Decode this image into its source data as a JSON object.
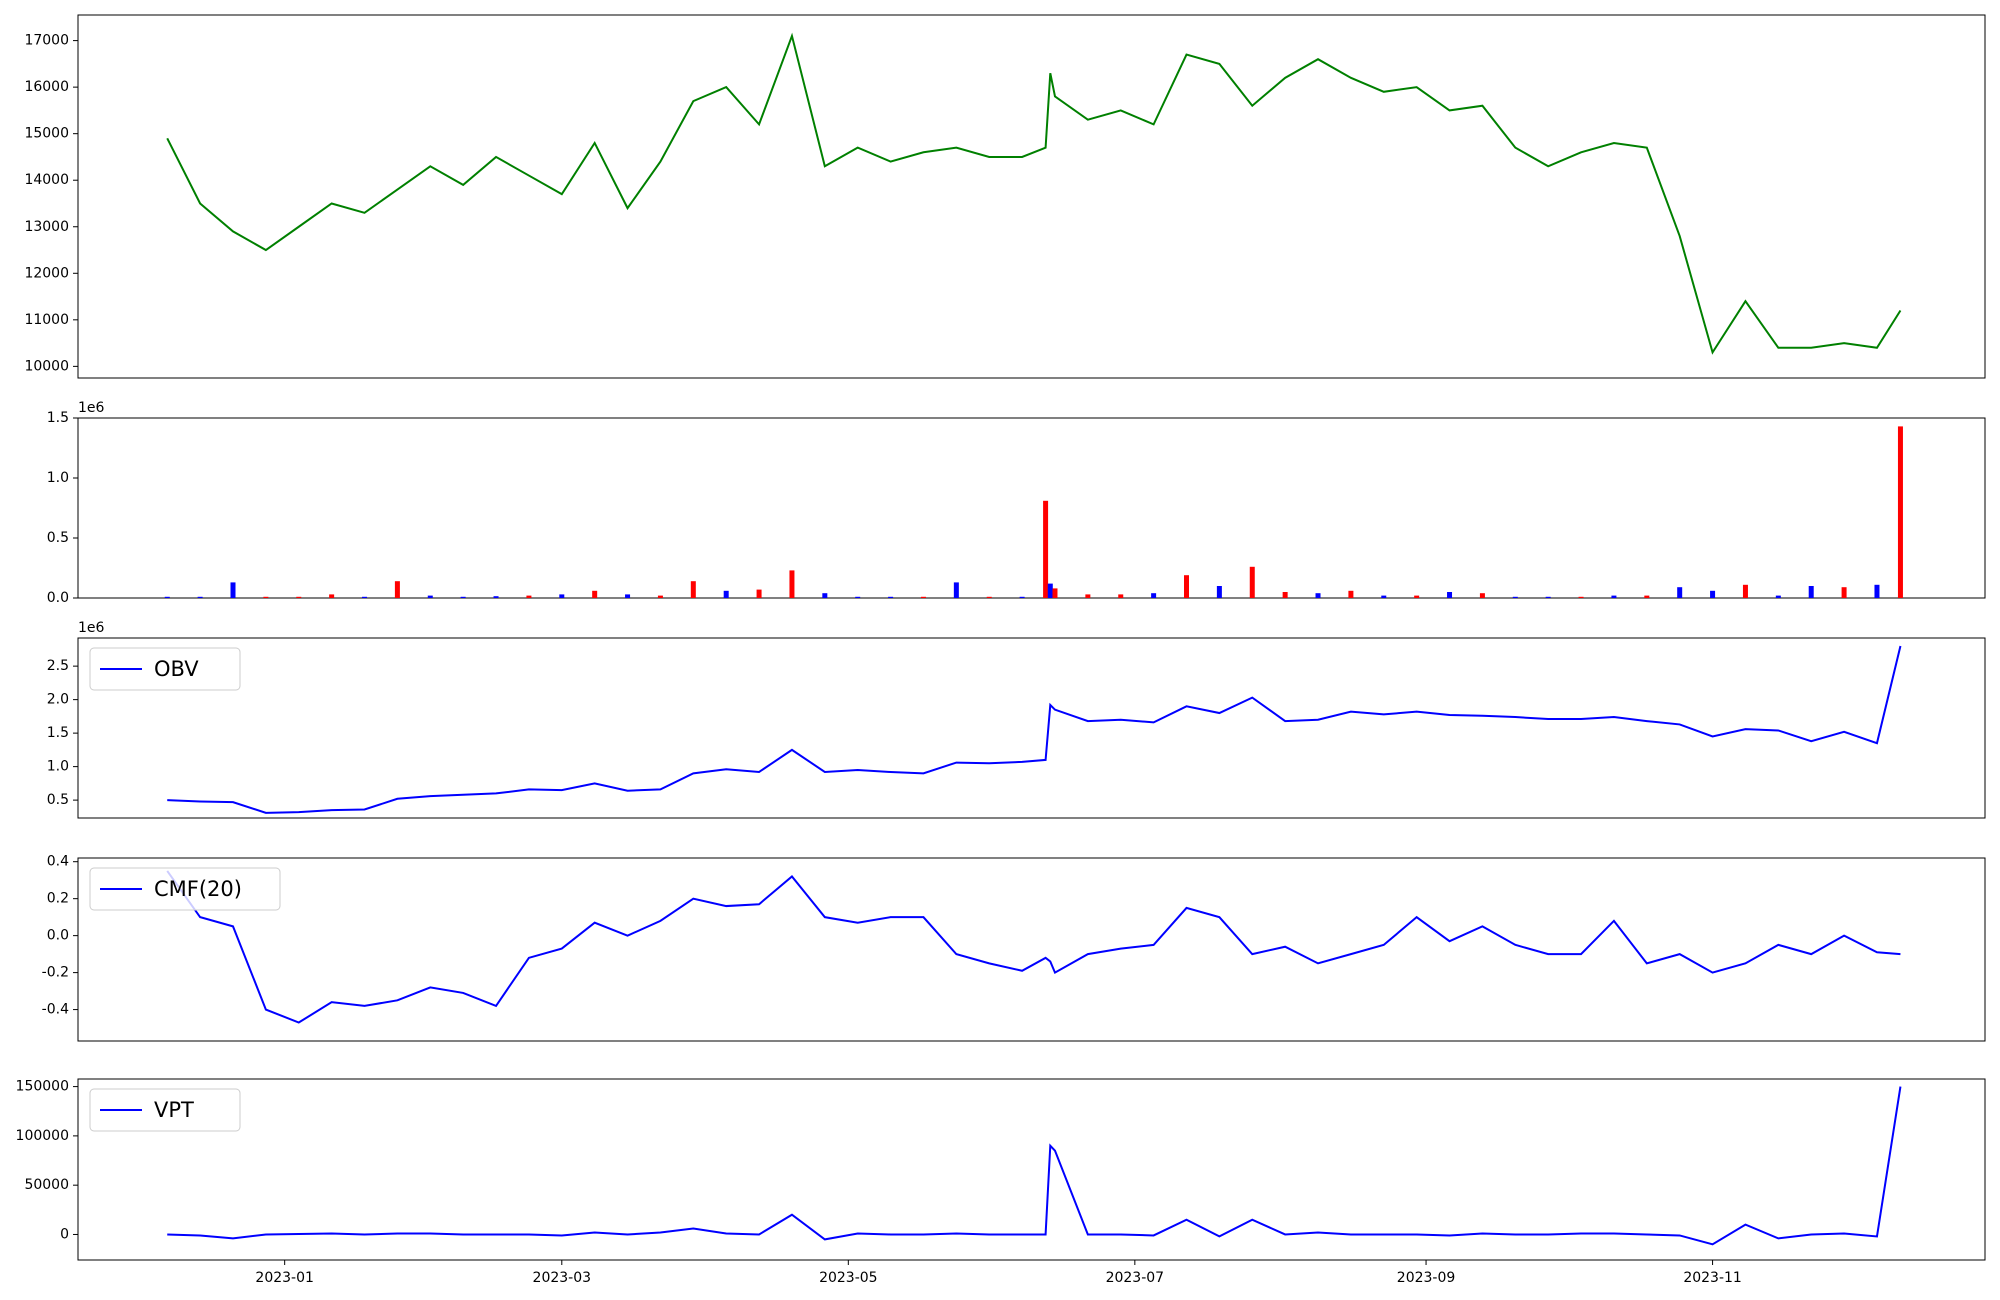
{
  "chart_data": [
    {
      "type": "line",
      "x": [
        "2022-12-07",
        "2022-12-14",
        "2022-12-21",
        "2022-12-28",
        "2023-01-04",
        "2023-01-11",
        "2023-01-18",
        "2023-01-25",
        "2023-02-01",
        "2023-02-08",
        "2023-02-15",
        "2023-02-22",
        "2023-03-01",
        "2023-03-08",
        "2023-03-15",
        "2023-03-22",
        "2023-03-29",
        "2023-04-05",
        "2023-04-12",
        "2023-04-19",
        "2023-04-26",
        "2023-05-03",
        "2023-05-10",
        "2023-05-17",
        "2023-05-24",
        "2023-05-31",
        "2023-06-07",
        "2023-06-12",
        "2023-06-13",
        "2023-06-14",
        "2023-06-21",
        "2023-06-28",
        "2023-07-05",
        "2023-07-12",
        "2023-07-19",
        "2023-07-26",
        "2023-08-02",
        "2023-08-09",
        "2023-08-16",
        "2023-08-23",
        "2023-08-30",
        "2023-09-06",
        "2023-09-13",
        "2023-09-20",
        "2023-09-27",
        "2023-10-04",
        "2023-10-11",
        "2023-10-18",
        "2023-10-25",
        "2023-11-01",
        "2023-11-08",
        "2023-11-15",
        "2023-11-22",
        "2023-11-29",
        "2023-12-06",
        "2023-12-11"
      ],
      "xlim": [
        "2022-11-18",
        "2023-12-29"
      ],
      "ylim": [
        9750,
        17550
      ],
      "yticks": [
        10000,
        11000,
        12000,
        13000,
        14000,
        15000,
        16000,
        17000
      ],
      "series": [
        {
          "color": "#008000",
          "values": [
            14900,
            13500,
            12900,
            12500,
            13000,
            13500,
            13300,
            13800,
            14300,
            13900,
            14500,
            14100,
            13700,
            14800,
            13400,
            14400,
            15700,
            16000,
            15200,
            17100,
            14300,
            14700,
            14400,
            14600,
            14700,
            14500,
            14500,
            14700,
            16300,
            15800,
            15300,
            15500,
            15200,
            16700,
            16500,
            15600,
            16200,
            16600,
            16200,
            15900,
            16000,
            15500,
            15600,
            14700,
            14300,
            14600,
            14800,
            14700,
            12800,
            10300,
            11400,
            10400,
            10400,
            10500,
            10400,
            11200
          ]
        }
      ]
    },
    {
      "type": "bar",
      "x": [
        "2022-12-07",
        "2022-12-14",
        "2022-12-21",
        "2022-12-28",
        "2023-01-04",
        "2023-01-11",
        "2023-01-18",
        "2023-01-25",
        "2023-02-01",
        "2023-02-08",
        "2023-02-15",
        "2023-02-22",
        "2023-03-01",
        "2023-03-08",
        "2023-03-15",
        "2023-03-22",
        "2023-03-29",
        "2023-04-05",
        "2023-04-12",
        "2023-04-19",
        "2023-04-26",
        "2023-05-03",
        "2023-05-10",
        "2023-05-17",
        "2023-05-24",
        "2023-05-31",
        "2023-06-07",
        "2023-06-12",
        "2023-06-13",
        "2023-06-14",
        "2023-06-21",
        "2023-06-28",
        "2023-07-05",
        "2023-07-12",
        "2023-07-19",
        "2023-07-26",
        "2023-08-02",
        "2023-08-09",
        "2023-08-16",
        "2023-08-23",
        "2023-08-30",
        "2023-09-06",
        "2023-09-13",
        "2023-09-20",
        "2023-09-27",
        "2023-10-04",
        "2023-10-11",
        "2023-10-18",
        "2023-10-25",
        "2023-11-01",
        "2023-11-08",
        "2023-11-15",
        "2023-11-22",
        "2023-11-29",
        "2023-12-06",
        "2023-12-11"
      ],
      "xlim": [
        "2022-11-18",
        "2023-12-29"
      ],
      "offset_text": "1e6",
      "ylim": [
        0,
        1500000
      ],
      "yticks": [
        {
          "value": 0,
          "label": "0.0"
        },
        {
          "value": 500000,
          "label": "0.5"
        },
        {
          "value": 1000000,
          "label": "1.0"
        },
        {
          "value": 1500000,
          "label": "1.5"
        }
      ],
      "series": [
        {
          "values": [
            10000,
            10000,
            130000,
            10000,
            10000,
            30000,
            10000,
            140000,
            20000,
            10000,
            15000,
            20000,
            30000,
            60000,
            30000,
            20000,
            140000,
            60000,
            70000,
            230000,
            40000,
            10000,
            10000,
            10000,
            130000,
            10000,
            10000,
            810000,
            120000,
            80000,
            30000,
            30000,
            40000,
            190000,
            100000,
            260000,
            50000,
            40000,
            60000,
            20000,
            20000,
            50000,
            40000,
            10000,
            10000,
            10000,
            20000,
            20000,
            90000,
            60000,
            110000,
            20000,
            100000,
            90000,
            110000,
            1430000
          ],
          "colors": [
            "#0000ff",
            "#0000ff",
            "#0000ff",
            "#ff0000",
            "#ff0000",
            "#ff0000",
            "#0000ff",
            "#ff0000",
            "#0000ff",
            "#0000ff",
            "#0000ff",
            "#ff0000",
            "#0000ff",
            "#ff0000",
            "#0000ff",
            "#ff0000",
            "#ff0000",
            "#0000ff",
            "#ff0000",
            "#ff0000",
            "#0000ff",
            "#0000ff",
            "#0000ff",
            "#ff0000",
            "#0000ff",
            "#ff0000",
            "#0000ff",
            "#ff0000",
            "#0000ff",
            "#ff0000",
            "#ff0000",
            "#ff0000",
            "#0000ff",
            "#ff0000",
            "#0000ff",
            "#ff0000",
            "#ff0000",
            "#0000ff",
            "#ff0000",
            "#0000ff",
            "#ff0000",
            "#0000ff",
            "#ff0000",
            "#0000ff",
            "#0000ff",
            "#ff0000",
            "#0000ff",
            "#ff0000",
            "#0000ff",
            "#0000ff",
            "#ff0000",
            "#0000ff",
            "#0000ff",
            "#ff0000",
            "#0000ff",
            "#ff0000"
          ]
        }
      ]
    },
    {
      "type": "line",
      "x": [
        "2022-12-07",
        "2022-12-14",
        "2022-12-21",
        "2022-12-28",
        "2023-01-04",
        "2023-01-11",
        "2023-01-18",
        "2023-01-25",
        "2023-02-01",
        "2023-02-08",
        "2023-02-15",
        "2023-02-22",
        "2023-03-01",
        "2023-03-08",
        "2023-03-15",
        "2023-03-22",
        "2023-03-29",
        "2023-04-05",
        "2023-04-12",
        "2023-04-19",
        "2023-04-26",
        "2023-05-03",
        "2023-05-10",
        "2023-05-17",
        "2023-05-24",
        "2023-05-31",
        "2023-06-07",
        "2023-06-12",
        "2023-06-13",
        "2023-06-14",
        "2023-06-21",
        "2023-06-28",
        "2023-07-05",
        "2023-07-12",
        "2023-07-19",
        "2023-07-26",
        "2023-08-02",
        "2023-08-09",
        "2023-08-16",
        "2023-08-23",
        "2023-08-30",
        "2023-09-06",
        "2023-09-13",
        "2023-09-20",
        "2023-09-27",
        "2023-10-04",
        "2023-10-11",
        "2023-10-18",
        "2023-10-25",
        "2023-11-01",
        "2023-11-08",
        "2023-11-15",
        "2023-11-22",
        "2023-11-29",
        "2023-12-06",
        "2023-12-11"
      ],
      "xlim": [
        "2022-11-18",
        "2023-12-29"
      ],
      "offset_text": "1e6",
      "ylim": [
        233000,
        2920000
      ],
      "yticks": [
        {
          "value": 500000,
          "label": "0.5"
        },
        {
          "value": 1000000,
          "label": "1.0"
        },
        {
          "value": 1500000,
          "label": "1.5"
        },
        {
          "value": 2000000,
          "label": "2.0"
        },
        {
          "value": 2500000,
          "label": "2.5"
        }
      ],
      "legend": "upper left",
      "series": [
        {
          "name": "OBV",
          "color": "#0000ff",
          "values": [
            500000,
            480000,
            470000,
            310000,
            320000,
            350000,
            360000,
            520000,
            560000,
            580000,
            600000,
            660000,
            650000,
            750000,
            640000,
            660000,
            900000,
            960000,
            920000,
            1250000,
            920000,
            950000,
            920000,
            900000,
            1060000,
            1050000,
            1070000,
            1100000,
            1920000,
            1850000,
            1680000,
            1700000,
            1660000,
            1900000,
            1800000,
            2030000,
            1680000,
            1700000,
            1820000,
            1780000,
            1820000,
            1770000,
            1760000,
            1740000,
            1710000,
            1710000,
            1740000,
            1680000,
            1630000,
            1450000,
            1560000,
            1540000,
            1380000,
            1520000,
            1350000,
            2800000
          ]
        }
      ]
    },
    {
      "type": "line",
      "x": [
        "2022-12-07",
        "2022-12-14",
        "2022-12-21",
        "2022-12-28",
        "2023-01-04",
        "2023-01-11",
        "2023-01-18",
        "2023-01-25",
        "2023-02-01",
        "2023-02-08",
        "2023-02-15",
        "2023-02-22",
        "2023-03-01",
        "2023-03-08",
        "2023-03-15",
        "2023-03-22",
        "2023-03-29",
        "2023-04-05",
        "2023-04-12",
        "2023-04-19",
        "2023-04-26",
        "2023-05-03",
        "2023-05-10",
        "2023-05-17",
        "2023-05-24",
        "2023-05-31",
        "2023-06-07",
        "2023-06-12",
        "2023-06-13",
        "2023-06-14",
        "2023-06-21",
        "2023-06-28",
        "2023-07-05",
        "2023-07-12",
        "2023-07-19",
        "2023-07-26",
        "2023-08-02",
        "2023-08-09",
        "2023-08-16",
        "2023-08-23",
        "2023-08-30",
        "2023-09-06",
        "2023-09-13",
        "2023-09-20",
        "2023-09-27",
        "2023-10-04",
        "2023-10-11",
        "2023-10-18",
        "2023-10-25",
        "2023-11-01",
        "2023-11-08",
        "2023-11-15",
        "2023-11-22",
        "2023-11-29",
        "2023-12-06",
        "2023-12-11"
      ],
      "xlim": [
        "2022-11-18",
        "2023-12-29"
      ],
      "ylim": [
        -0.57,
        0.42
      ],
      "yticks": [
        -0.4,
        -0.2,
        {
          "value": 0,
          "label": "0.0"
        },
        0.2,
        0.4
      ],
      "legend": "upper left",
      "series": [
        {
          "name": "CMF(20)",
          "color": "#0000ff",
          "values": [
            0.35,
            0.1,
            0.05,
            -0.4,
            -0.47,
            -0.36,
            -0.38,
            -0.35,
            -0.28,
            -0.31,
            -0.38,
            -0.12,
            -0.07,
            0.07,
            0.0,
            0.08,
            0.2,
            0.16,
            0.17,
            0.32,
            0.1,
            0.07,
            0.1,
            0.1,
            -0.1,
            -0.15,
            -0.19,
            -0.12,
            -0.14,
            -0.2,
            -0.1,
            -0.07,
            -0.05,
            0.15,
            0.1,
            -0.1,
            -0.06,
            -0.15,
            -0.1,
            -0.05,
            0.1,
            -0.03,
            0.05,
            -0.05,
            -0.1,
            -0.1,
            0.08,
            -0.15,
            -0.1,
            -0.2,
            -0.15,
            -0.05,
            -0.1,
            0.0,
            -0.09,
            -0.1
          ]
        }
      ]
    },
    {
      "type": "line",
      "x": [
        "2022-12-07",
        "2022-12-14",
        "2022-12-21",
        "2022-12-28",
        "2023-01-04",
        "2023-01-11",
        "2023-01-18",
        "2023-01-25",
        "2023-02-01",
        "2023-02-08",
        "2023-02-15",
        "2023-02-22",
        "2023-03-01",
        "2023-03-08",
        "2023-03-15",
        "2023-03-22",
        "2023-03-29",
        "2023-04-05",
        "2023-04-12",
        "2023-04-19",
        "2023-04-26",
        "2023-05-03",
        "2023-05-10",
        "2023-05-17",
        "2023-05-24",
        "2023-05-31",
        "2023-06-07",
        "2023-06-12",
        "2023-06-13",
        "2023-06-14",
        "2023-06-21",
        "2023-06-28",
        "2023-07-05",
        "2023-07-12",
        "2023-07-19",
        "2023-07-26",
        "2023-08-02",
        "2023-08-09",
        "2023-08-16",
        "2023-08-23",
        "2023-08-30",
        "2023-09-06",
        "2023-09-13",
        "2023-09-20",
        "2023-09-27",
        "2023-10-04",
        "2023-10-11",
        "2023-10-18",
        "2023-10-25",
        "2023-11-01",
        "2023-11-08",
        "2023-11-15",
        "2023-11-22",
        "2023-11-29",
        "2023-12-06",
        "2023-12-11"
      ],
      "xlim": [
        "2022-11-18",
        "2023-12-29"
      ],
      "xticks": [
        {
          "value": "2023-01-01",
          "label": "2023-01"
        },
        {
          "value": "2023-03-01",
          "label": "2023-03"
        },
        {
          "value": "2023-05-01",
          "label": "2023-05"
        },
        {
          "value": "2023-07-01",
          "label": "2023-07"
        },
        {
          "value": "2023-09-01",
          "label": "2023-09"
        },
        {
          "value": "2023-11-01",
          "label": "2023-11"
        }
      ],
      "ylim": [
        -25900,
        157700
      ],
      "yticks": [
        0,
        50000,
        100000,
        150000
      ],
      "legend": "upper left",
      "series": [
        {
          "name": "VPT",
          "color": "#0000ff",
          "values": [
            0,
            -1000,
            -4000,
            0,
            500,
            1000,
            0,
            1000,
            1000,
            0,
            0,
            0,
            -1000,
            2000,
            0,
            2000,
            6000,
            1000,
            0,
            20000,
            -5000,
            1000,
            0,
            0,
            1000,
            0,
            0,
            0,
            90000,
            85000,
            0,
            0,
            -1000,
            15000,
            -2000,
            15000,
            0,
            2000,
            0,
            0,
            0,
            -1000,
            1000,
            0,
            0,
            1000,
            1000,
            0,
            -1000,
            -10000,
            10000,
            -4000,
            0,
            1000,
            -2000,
            150000
          ]
        }
      ]
    }
  ]
}
